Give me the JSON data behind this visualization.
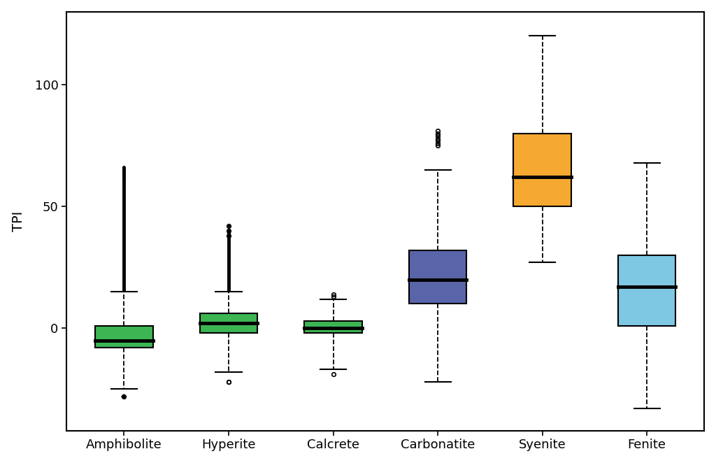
{
  "categories": [
    "Amphibolite",
    "Hyperite",
    "Calcrete",
    "Carbonatite",
    "Syenite",
    "Fenite"
  ],
  "colors": [
    "#3cb553",
    "#3cb553",
    "#3cb553",
    "#5965a8",
    "#f5a930",
    "#7ec8e3"
  ],
  "box_stats": [
    {
      "name": "Amphibolite",
      "q1": -8,
      "median": -5,
      "q3": 1,
      "whislo": -25,
      "whishi": 15,
      "fliers_high_dense": [
        17,
        18,
        19,
        20,
        21,
        22,
        23,
        24,
        25,
        26,
        27,
        28,
        29,
        30,
        31,
        32,
        33,
        34,
        35,
        36,
        37,
        38,
        39,
        40,
        41,
        42,
        43,
        44,
        45,
        46,
        47,
        48,
        49,
        50,
        51,
        52,
        53,
        54,
        55,
        56,
        57,
        58,
        59,
        60,
        61,
        62,
        63,
        64,
        65,
        66
      ],
      "fliers_low": [
        -28
      ]
    },
    {
      "name": "Hyperite",
      "q1": -2,
      "median": 2,
      "q3": 6,
      "whislo": -18,
      "whishi": 15,
      "fliers_high": [
        38,
        40,
        42
      ],
      "fliers_low": [
        -22
      ]
    },
    {
      "name": "Calcrete",
      "q1": -2,
      "median": 0,
      "q3": 3,
      "whislo": -17,
      "whishi": 12,
      "fliers_high": [
        13,
        14
      ],
      "fliers_low": [
        -19
      ]
    },
    {
      "name": "Carbonatite",
      "q1": 10,
      "median": 20,
      "q3": 32,
      "whislo": -22,
      "whishi": 65,
      "fliers_high": [
        75,
        76,
        77,
        78,
        79,
        80,
        81
      ],
      "fliers_low": []
    },
    {
      "name": "Syenite",
      "q1": 50,
      "median": 62,
      "q3": 80,
      "whislo": 27,
      "whishi": 120,
      "fliers_high": [],
      "fliers_low": []
    },
    {
      "name": "Fenite",
      "q1": 1,
      "median": 17,
      "q3": 30,
      "whislo": -33,
      "whishi": 68,
      "fliers_high": [],
      "fliers_low": []
    }
  ],
  "ylabel": "TPI",
  "ylim": [
    -42,
    130
  ],
  "yticks": [
    0,
    50,
    100
  ],
  "background_color": "#ffffff",
  "box_width": 0.55,
  "median_lw": 3.5,
  "cap_ratio": 0.45
}
